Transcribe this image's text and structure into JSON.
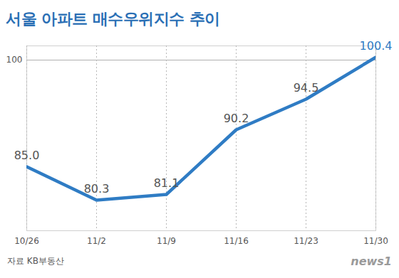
{
  "chart_data": {
    "type": "line",
    "title": "서울 아파트 매수우위지수 추이",
    "source": "자료 KB부동산",
    "credit": "news1",
    "categories": [
      "10/26",
      "11/2",
      "11/9",
      "11/16",
      "11/23",
      "11/30"
    ],
    "values": [
      85.0,
      80.3,
      81.1,
      90.2,
      94.5,
      100.4
    ],
    "value_labels": [
      "85.0",
      "80.3",
      "81.1",
      "90.2",
      "94.5",
      "100.4"
    ],
    "data_labels": true,
    "color": "#2f7cc4",
    "ylim": [
      76,
      102
    ],
    "yticks": [
      100
    ],
    "grid": true
  }
}
